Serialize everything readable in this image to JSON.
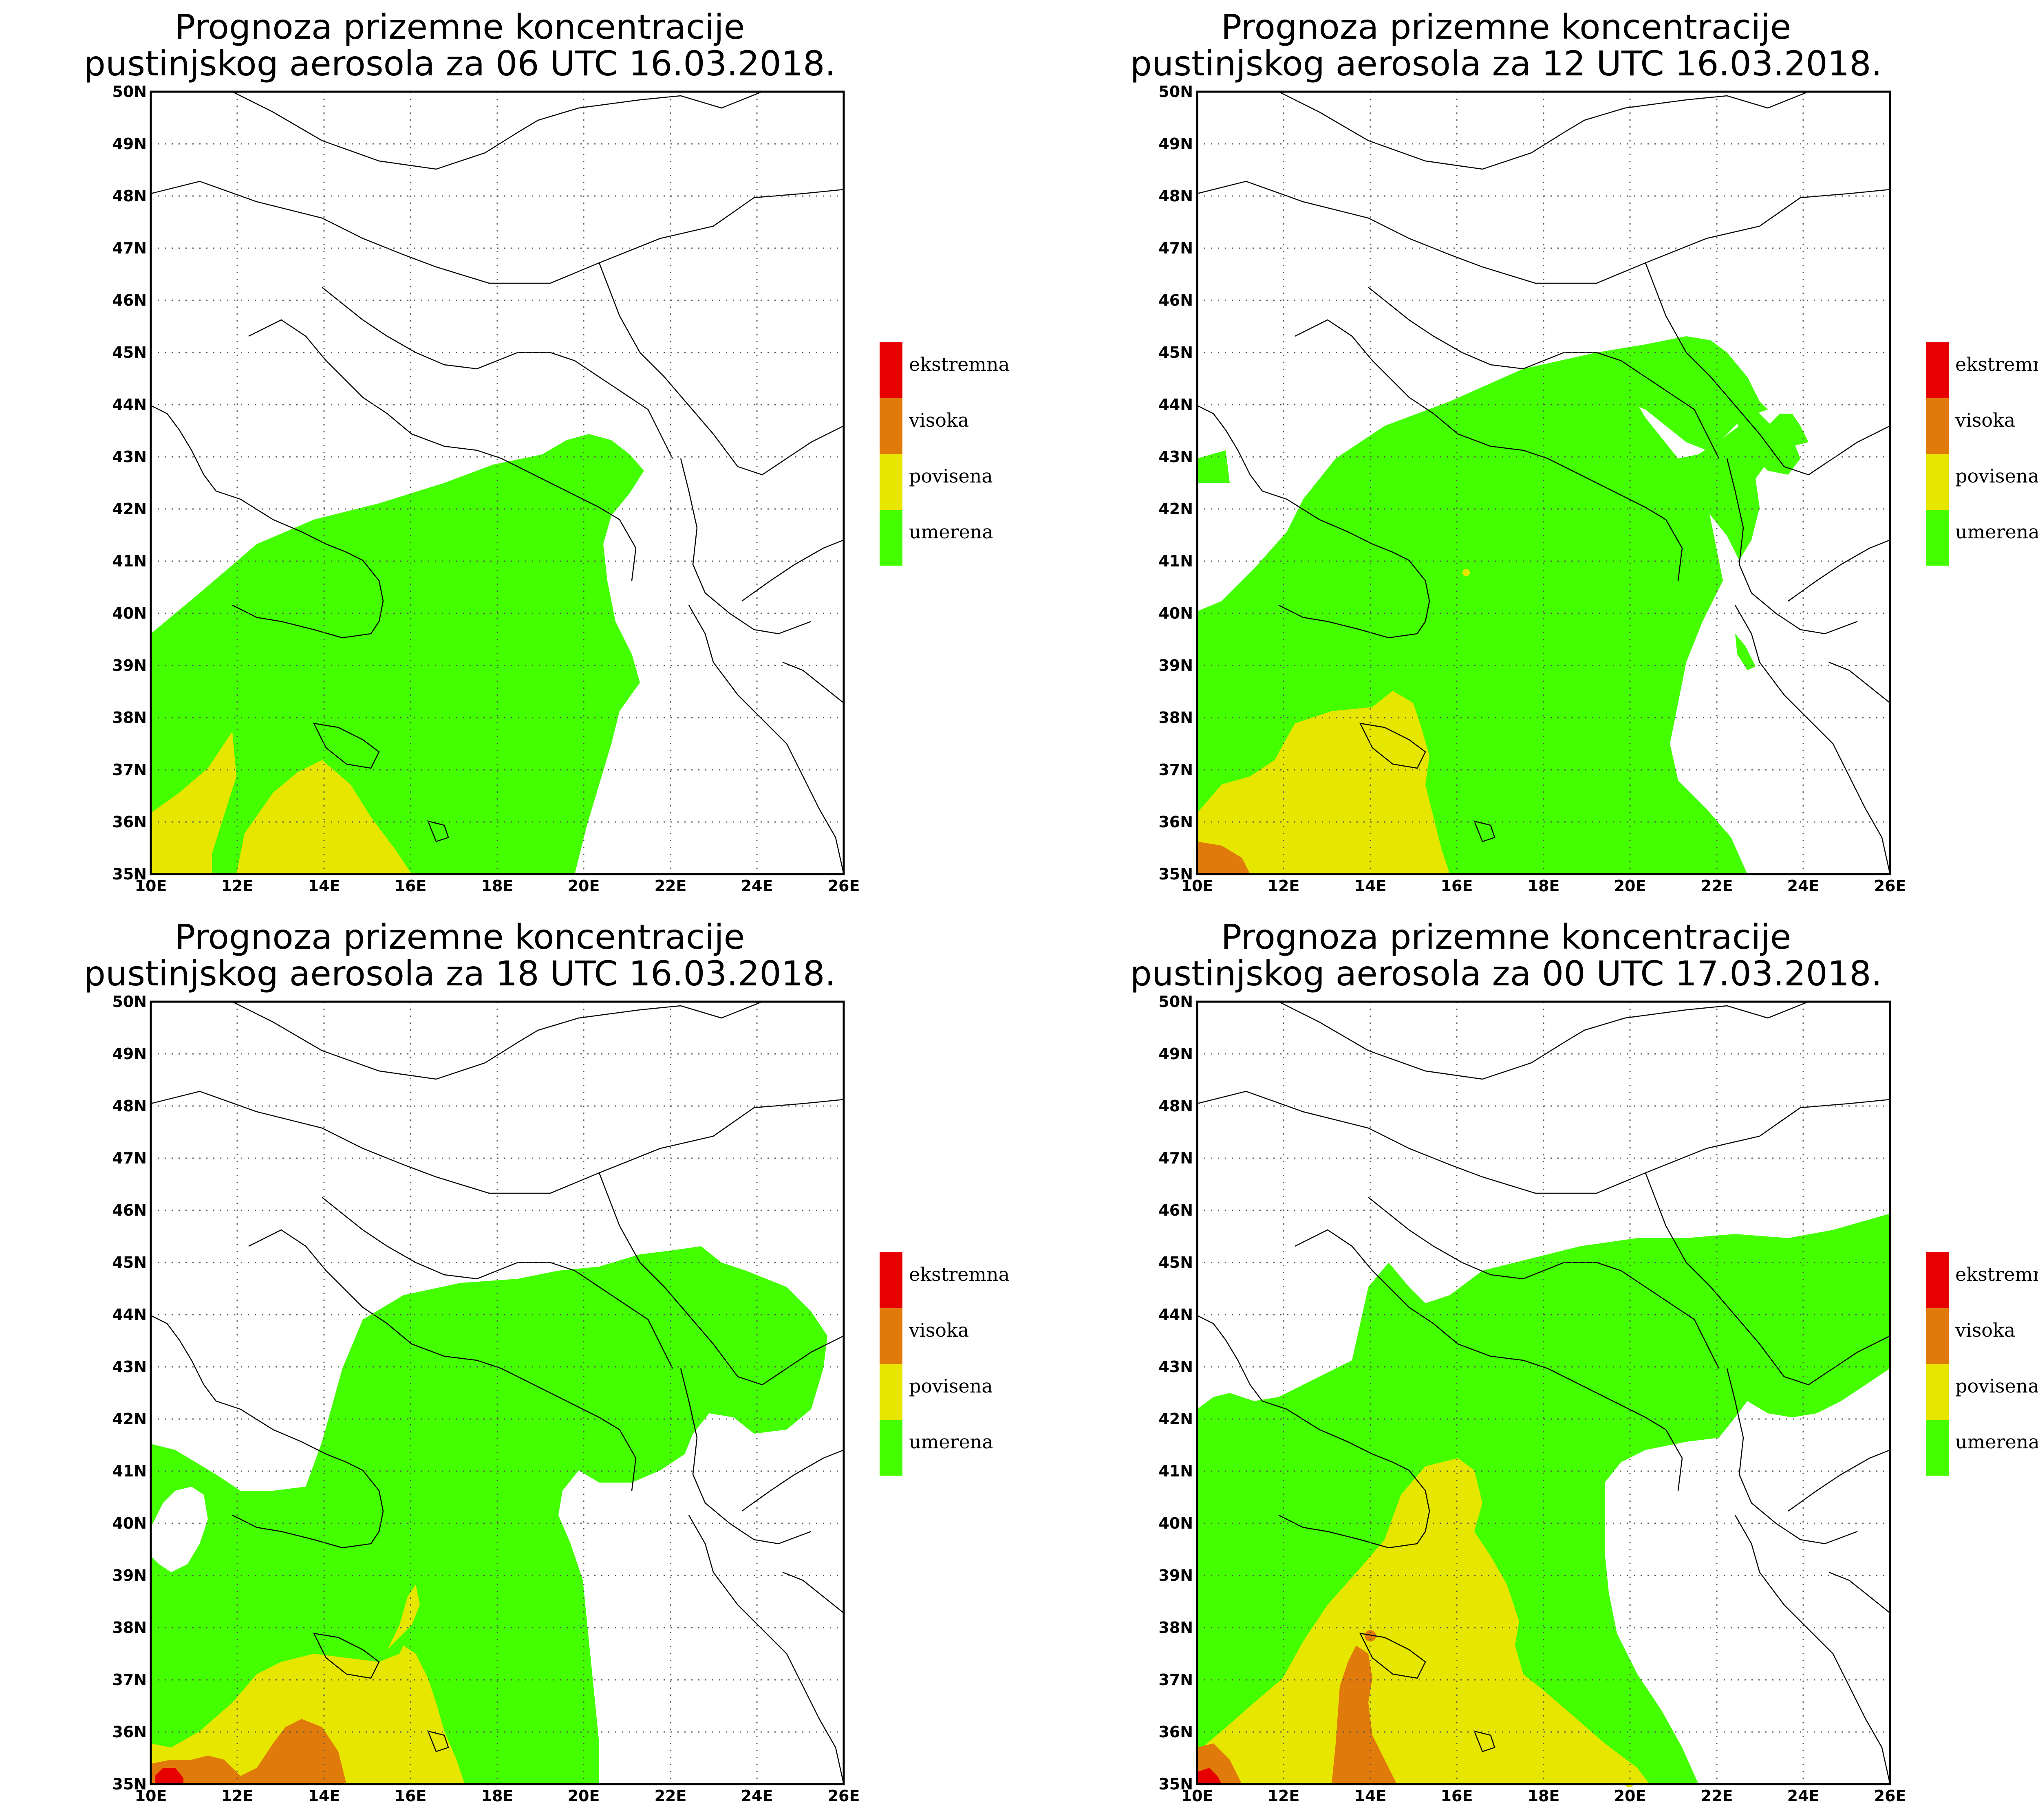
{
  "colors": {
    "umerena": "#44ff00",
    "povisena": "#e6e600",
    "visoka": "#e07a0a",
    "ekstremna": "#e60000"
  },
  "axes": {
    "x_ticks": [
      "10E",
      "12E",
      "14E",
      "16E",
      "18E",
      "20E",
      "22E",
      "24E",
      "26E"
    ],
    "y_ticks": [
      "35N",
      "36N",
      "37N",
      "38N",
      "39N",
      "40N",
      "41N",
      "42N",
      "43N",
      "44N",
      "45N",
      "46N",
      "47N",
      "48N",
      "49N",
      "50N"
    ],
    "lon_range": [
      10,
      26
    ],
    "lat_range": [
      35,
      50
    ]
  },
  "legend": [
    "ekstremna",
    "visoka",
    "povisena",
    "umerena"
  ],
  "panels": [
    {
      "title_line1": "Prognoza prizemne koncentracije",
      "title_line2": "pustinjskog aerosola za 06 UTC 16.03.2018."
    },
    {
      "title_line1": "Prognoza prizemne koncentracije",
      "title_line2": "pustinjskog aerosola za 12 UTC 16.03.2018."
    },
    {
      "title_line1": "Prognoza prizemne koncentracije",
      "title_line2": "pustinjskog aerosola za 18 UTC 16.03.2018."
    },
    {
      "title_line1": "Prognoza prizemne koncentracije",
      "title_line2": "pustinjskog aerosola za 00 UTC 17.03.2018."
    }
  ]
}
